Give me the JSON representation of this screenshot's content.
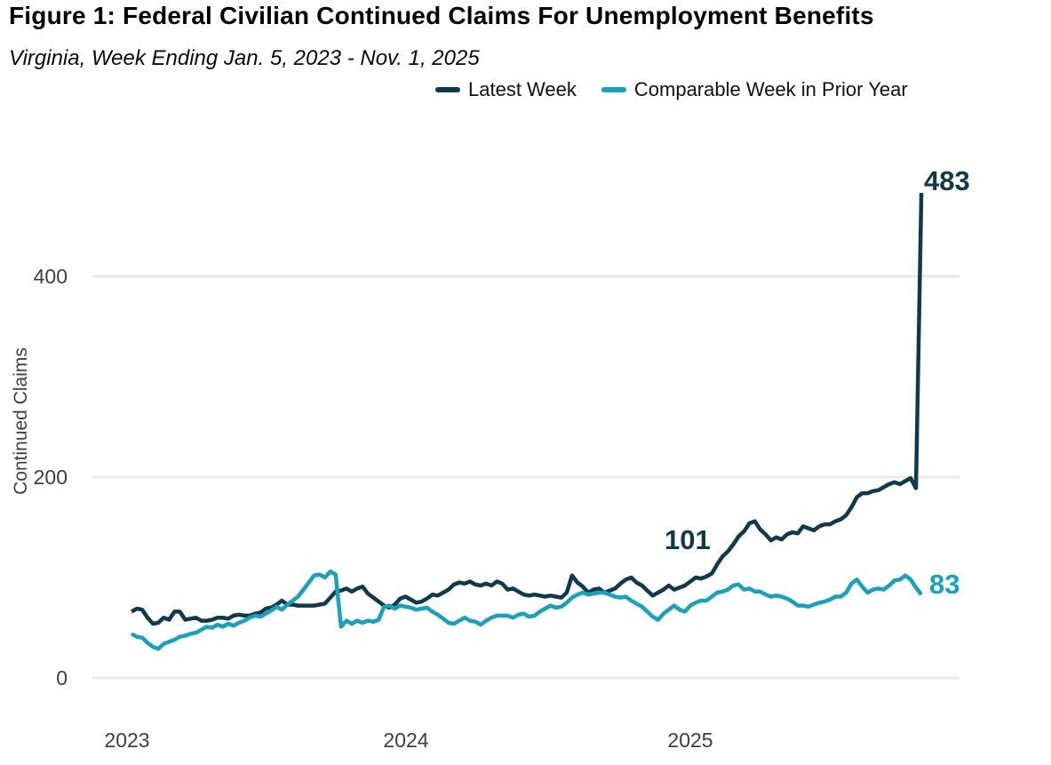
{
  "title": "Figure 1: Federal Civilian Continued Claims For Unemployment Benefits",
  "subtitle": "Virginia, Week Ending Jan. 5, 2023 - Nov. 1, 2025",
  "colors": {
    "latest_week": "#0e3a4c",
    "prior_year": "#16a2bd",
    "gridline": "#e9e9e9",
    "tick_text": "#3f3f3f"
  },
  "legend": [
    {
      "label": "Latest Week",
      "color": "#0e3a4c"
    },
    {
      "label": "Comparable Week in Prior Year",
      "color": "#16a2bd"
    }
  ],
  "y_axis": {
    "title": "Continued Claims",
    "ticks": [
      "400",
      "200",
      "0"
    ]
  },
  "x_axis": {
    "ticks": [
      "2023",
      "2024",
      "2025"
    ]
  },
  "annotations": [
    {
      "text": "483",
      "series": "Latest Week",
      "color": "#0e3a4c"
    },
    {
      "text": "101",
      "series": "Latest Week",
      "color": "#0e3a4c"
    },
    {
      "text": "83",
      "series": "Comparable Week in Prior Year",
      "color": "#16a2bd"
    }
  ],
  "chart_data": {
    "type": "line",
    "title": "Figure 1: Federal Civilian Continued Claims For Unemployment Benefits",
    "subtitle": "Virginia, Week Ending Jan. 5, 2023 - Nov. 1, 2025",
    "xlabel": "",
    "ylabel": "Continued Claims",
    "x_unit": "week",
    "x_range": [
      "Jan. 5, 2023",
      "Nov. 1, 2025"
    ],
    "x_tick_labels": [
      "2023",
      "2024",
      "2025"
    ],
    "ylim": [
      0,
      500
    ],
    "y_gridlines": [
      0,
      200,
      400
    ],
    "grid": "horizontal-only",
    "legend_position": "top",
    "series": [
      {
        "name": "Latest Week",
        "color": "#0e3a4c",
        "last_value": 483,
        "values": [
          66,
          69,
          68,
          60,
          54,
          55,
          60,
          58,
          66,
          66,
          58,
          59,
          60,
          57,
          57,
          58,
          60,
          60,
          59,
          62,
          63,
          62,
          62,
          64,
          65,
          69,
          70,
          73,
          77,
          73,
          73,
          72,
          72,
          72,
          72,
          73,
          74,
          80,
          86,
          87,
          89,
          86,
          89,
          91,
          84,
          80,
          76,
          72,
          70,
          73,
          79,
          81,
          78,
          75,
          76,
          79,
          83,
          82,
          85,
          88,
          93,
          95,
          94,
          96,
          93,
          92,
          94,
          92,
          96,
          94,
          88,
          89,
          86,
          83,
          82,
          83,
          82,
          81,
          82,
          81,
          80,
          85,
          102,
          95,
          91,
          85,
          88,
          89,
          85,
          87,
          89,
          94,
          98,
          100,
          95,
          92,
          87,
          82,
          85,
          88,
          92,
          88,
          90,
          92,
          96,
          100,
          99,
          101,
          104,
          113,
          121,
          126,
          133,
          141,
          146,
          154,
          156,
          148,
          143,
          137,
          140,
          138,
          143,
          145,
          144,
          151,
          149,
          147,
          151,
          153,
          153,
          156,
          158,
          162,
          170,
          180,
          184,
          184,
          186,
          187,
          190,
          193,
          195,
          193,
          196,
          199,
          189,
          483
        ]
      },
      {
        "name": "Comparable Week in Prior Year",
        "color": "#16a2bd",
        "last_value": 83,
        "values": [
          44,
          41,
          40,
          35,
          31,
          29,
          34,
          36,
          38,
          41,
          42,
          44,
          45,
          48,
          51,
          50,
          53,
          51,
          54,
          52,
          55,
          57,
          60,
          62,
          61,
          64,
          67,
          71,
          68,
          73,
          77,
          81,
          88,
          95,
          102,
          103,
          100,
          106,
          103,
          51,
          57,
          54,
          57,
          55,
          57,
          56,
          58,
          71,
          72,
          69,
          72,
          71,
          70,
          68,
          69,
          70,
          66,
          63,
          59,
          55,
          54,
          57,
          60,
          57,
          56,
          53,
          57,
          60,
          62,
          62,
          62,
          60,
          63,
          64,
          61,
          62,
          66,
          69,
          72,
          70,
          71,
          75,
          80,
          83,
          85,
          83,
          84,
          85,
          85,
          83,
          81,
          80,
          81,
          77,
          74,
          71,
          66,
          61,
          58,
          64,
          68,
          72,
          68,
          66,
          72,
          75,
          77,
          77,
          81,
          85,
          86,
          88,
          92,
          93,
          88,
          89,
          86,
          86,
          83,
          81,
          82,
          81,
          79,
          76,
          72,
          72,
          71,
          73,
          75,
          76,
          78,
          81,
          81,
          85,
          94,
          98,
          91,
          85,
          88,
          89,
          88,
          92,
          97,
          98,
          102,
          98,
          90,
          83
        ]
      }
    ],
    "annotated_points": [
      {
        "label": "483",
        "series": "Latest Week",
        "note": "final week value"
      },
      {
        "label": "101",
        "series": "Latest Week",
        "note": "value one year before latest week"
      },
      {
        "label": "83",
        "series": "Comparable Week in Prior Year",
        "note": "final week value"
      }
    ]
  }
}
